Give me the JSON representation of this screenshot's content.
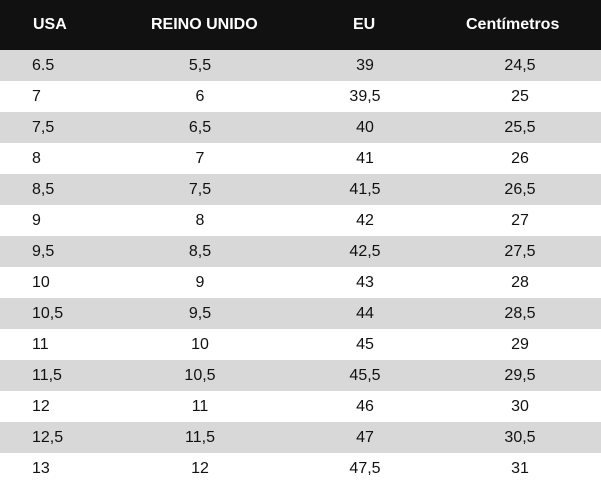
{
  "table": {
    "headers": [
      "USA",
      "REINO UNIDO",
      "EU",
      "Centímetros"
    ],
    "rows": [
      [
        "6.5",
        "5,5",
        "39",
        "24,5"
      ],
      [
        "7",
        "6",
        "39,5",
        "25"
      ],
      [
        "7,5",
        "6,5",
        "40",
        "25,5"
      ],
      [
        "8",
        "7",
        "41",
        "26"
      ],
      [
        "8,5",
        "7,5",
        "41,5",
        "26,5"
      ],
      [
        "9",
        "8",
        "42",
        "27"
      ],
      [
        "9,5",
        "8,5",
        "42,5",
        "27,5"
      ],
      [
        "10",
        "9",
        "43",
        "28"
      ],
      [
        "10,5",
        "9,5",
        "44",
        "28,5"
      ],
      [
        "11",
        "10",
        "45",
        "29"
      ],
      [
        "11,5",
        "10,5",
        "45,5",
        "29,5"
      ],
      [
        "12",
        "11",
        "46",
        "30"
      ],
      [
        "12,5",
        "11,5",
        "47",
        "30,5"
      ],
      [
        "13",
        "12",
        "47,5",
        "31"
      ]
    ]
  },
  "colors": {
    "header_bg": "#111111",
    "header_text": "#ffffff",
    "row_shaded": "#d8d8d8",
    "row_plain": "#ffffff",
    "body_text": "#111111"
  }
}
